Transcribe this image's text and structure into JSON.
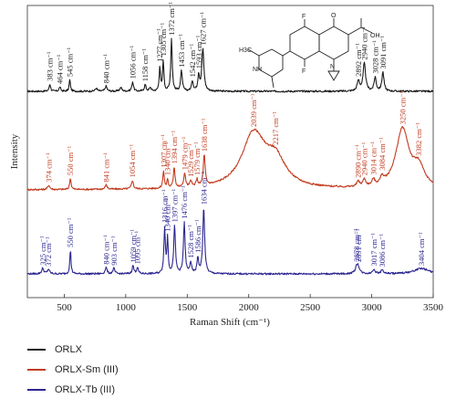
{
  "chart_data": {
    "type": "line",
    "xlabel": "Raman Shift (cm⁻¹)",
    "ylabel": "Intensity",
    "xlim": [
      200,
      3500
    ],
    "xticks": [
      "500",
      "1000",
      "1500",
      "2000",
      "2500",
      "3000",
      "3500"
    ],
    "legend_placement": "bottom-left",
    "grid": false,
    "series": [
      {
        "name": "ORLX",
        "color": "#1a1a1a",
        "baseline": 0.0,
        "noise": 0.025,
        "peaks": [
          {
            "x": 383,
            "h": 0.1,
            "w": 7,
            "label": "383 cm⁻¹"
          },
          {
            "x": 464,
            "h": 0.06,
            "w": 7,
            "label": "464 cm⁻¹"
          },
          {
            "x": 545,
            "h": 0.16,
            "w": 6,
            "label": "545 cm⁻¹"
          },
          {
            "x": 760,
            "h": 0.04,
            "w": 10
          },
          {
            "x": 840,
            "h": 0.07,
            "w": 9,
            "label": "840 cm⁻¹"
          },
          {
            "x": 960,
            "h": 0.05,
            "w": 10
          },
          {
            "x": 1056,
            "h": 0.13,
            "w": 8,
            "label": "1056 cm⁻¹"
          },
          {
            "x": 1158,
            "h": 0.09,
            "w": 8,
            "label": "1158 cm⁻¹"
          },
          {
            "x": 1200,
            "h": 0.05,
            "w": 8
          },
          {
            "x": 1277,
            "h": 0.34,
            "w": 6,
            "label": "1277 cm⁻¹"
          },
          {
            "x": 1305,
            "h": 0.42,
            "w": 6,
            "label": "1305 cm⁻¹"
          },
          {
            "x": 1372,
            "h": 0.72,
            "w": 7,
            "label": "1372 cm⁻¹"
          },
          {
            "x": 1453,
            "h": 0.28,
            "w": 8,
            "label": "1453 cm⁻¹"
          },
          {
            "x": 1542,
            "h": 0.14,
            "w": 8,
            "label": "1542 cm⁻¹"
          },
          {
            "x": 1593,
            "h": 0.22,
            "w": 8,
            "label": "1593 cm⁻¹"
          },
          {
            "x": 1627,
            "h": 0.58,
            "w": 10,
            "label": "1627 cm⁻¹"
          },
          {
            "x": 2892,
            "h": 0.14,
            "w": 12,
            "label": "2892 cm⁻¹"
          },
          {
            "x": 2940,
            "h": 0.38,
            "w": 12,
            "label": "2940 cm⁻¹"
          },
          {
            "x": 3028,
            "h": 0.19,
            "w": 10,
            "label": "3028 cm⁻¹"
          },
          {
            "x": 3091,
            "h": 0.26,
            "w": 10,
            "label": "3091 cm⁻¹"
          }
        ]
      },
      {
        "name": "ORLX-Sm (III)",
        "color": "#c23b1e",
        "baseline": 0.0,
        "noise": 0.02,
        "peaks": [
          {
            "x": 374,
            "h": 0.05,
            "w": 10,
            "label": "374 cm⁻¹"
          },
          {
            "x": 550,
            "h": 0.13,
            "w": 7,
            "label": "550 cm⁻¹"
          },
          {
            "x": 841,
            "h": 0.05,
            "w": 10,
            "label": "841 cm⁻¹"
          },
          {
            "x": 1054,
            "h": 0.1,
            "w": 9,
            "label": "1054 cm⁻¹"
          },
          {
            "x": 1307,
            "h": 0.2,
            "w": 7,
            "label": "1307 cm⁻¹"
          },
          {
            "x": 1340,
            "h": 0.1,
            "w": 6,
            "label": "1340 cm⁻¹"
          },
          {
            "x": 1394,
            "h": 0.24,
            "w": 8,
            "label": "1394 cm⁻¹"
          },
          {
            "x": 1479,
            "h": 0.16,
            "w": 9,
            "label": "1479 cm⁻¹"
          },
          {
            "x": 1529,
            "h": 0.07,
            "w": 8,
            "label": "1529 cm⁻¹"
          },
          {
            "x": 1579,
            "h": 0.08,
            "w": 8,
            "label": "1579 cm⁻¹"
          },
          {
            "x": 1638,
            "h": 0.35,
            "w": 9,
            "label": "1638 cm⁻¹"
          },
          {
            "x": 2039,
            "h": 0.62,
            "w": 115,
            "label": "2039 cm⁻¹"
          },
          {
            "x": 2217,
            "h": 0.3,
            "w": 100,
            "label": "2217 cm⁻¹"
          },
          {
            "x": 2890,
            "h": 0.06,
            "w": 14,
            "label": "2890 cm⁻¹"
          },
          {
            "x": 2940,
            "h": 0.08,
            "w": 14,
            "label": "2940 cm⁻¹"
          },
          {
            "x": 3014,
            "h": 0.07,
            "w": 12,
            "label": "3014 cm⁻¹"
          },
          {
            "x": 3084,
            "h": 0.08,
            "w": 14,
            "label": "3084 cm⁻¹"
          },
          {
            "x": 3250,
            "h": 0.68,
            "w": 65,
            "label": "3250 cm⁻¹"
          },
          {
            "x": 3382,
            "h": 0.22,
            "w": 55,
            "label": "3382 cm⁻¹"
          }
        ]
      },
      {
        "name": "ORLX-Tb (III)",
        "color": "#2b2590",
        "baseline": 0.0,
        "noise": 0.02,
        "peaks": [
          {
            "x": 325,
            "h": 0.06,
            "w": 10,
            "label": "325 cm⁻¹"
          },
          {
            "x": 372,
            "h": 0.05,
            "w": 10,
            "label": "372 cm⁻¹"
          },
          {
            "x": 550,
            "h": 0.26,
            "w": 6,
            "label": "550 cm⁻¹"
          },
          {
            "x": 840,
            "h": 0.07,
            "w": 9,
            "label": "840 cm⁻¹"
          },
          {
            "x": 903,
            "h": 0.06,
            "w": 9,
            "label": "903 cm⁻¹"
          },
          {
            "x": 1059,
            "h": 0.09,
            "w": 8,
            "label": "1059 cm⁻¹"
          },
          {
            "x": 1095,
            "h": 0.07,
            "w": 8,
            "label": "1095 cm⁻¹"
          },
          {
            "x": 1316,
            "h": 0.5,
            "w": 7,
            "label": "1316 cm⁻¹"
          },
          {
            "x": 1340,
            "h": 0.38,
            "w": 6,
            "label": "1340 cm⁻¹"
          },
          {
            "x": 1397,
            "h": 0.52,
            "w": 8,
            "label": "1397 cm⁻¹"
          },
          {
            "x": 1476,
            "h": 0.56,
            "w": 8,
            "label": "1476 cm⁻¹"
          },
          {
            "x": 1528,
            "h": 0.12,
            "w": 8,
            "label": "1528 cm⁻¹"
          },
          {
            "x": 1586,
            "h": 0.17,
            "w": 8,
            "label": "1586 cm⁻¹"
          },
          {
            "x": 1634,
            "h": 0.72,
            "w": 9,
            "label": "1634 cm⁻¹"
          },
          {
            "x": 2878,
            "h": 0.07,
            "w": 14,
            "label": "2878 cm⁻¹"
          },
          {
            "x": 2891,
            "h": 0.06,
            "w": 14,
            "label": "2891 cm⁻¹"
          },
          {
            "x": 3017,
            "h": 0.05,
            "w": 12,
            "label": "3017 cm⁻¹"
          },
          {
            "x": 3086,
            "h": 0.04,
            "w": 12,
            "label": "3086 cm⁻¹"
          },
          {
            "x": 3404,
            "h": 0.06,
            "w": 70,
            "label": "3404 cm⁻¹"
          }
        ]
      }
    ],
    "structure_labels": {
      "oxo": "O",
      "acid": "OH",
      "fluoro": "F",
      "amine": "NH",
      "ring_n": "N",
      "methyl": "H3C"
    }
  }
}
